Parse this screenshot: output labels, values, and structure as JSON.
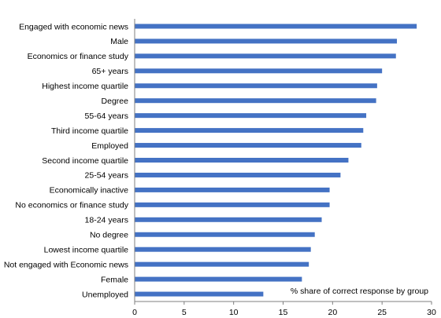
{
  "chart_data": {
    "type": "bar",
    "orientation": "horizontal",
    "categories": [
      "Engaged with economic news",
      "Male",
      "Economics or finance study",
      "65+ years",
      "Highest income quartile",
      "Degree",
      "55-64 years",
      "Third income quartile",
      "Employed",
      "Second income quartile",
      "25-54 years",
      "Economically inactive",
      "No economics or finance study",
      "18-24 years",
      "No degree",
      "Lowest income quartile",
      "Not engaged with Economic news",
      "Female",
      "Unemployed"
    ],
    "values": [
      28.5,
      26.5,
      26.4,
      25.0,
      24.5,
      24.4,
      23.4,
      23.1,
      22.9,
      21.6,
      20.8,
      19.7,
      19.7,
      18.9,
      18.2,
      17.8,
      17.6,
      16.9,
      13.0
    ],
    "xlim": [
      0,
      30
    ],
    "xticks": [
      "0",
      "5",
      "10",
      "15",
      "20",
      "25",
      "30"
    ],
    "annotation": "% share of correct response by group",
    "title": "",
    "xlabel": "",
    "ylabel": "",
    "grid": false,
    "legend": "none",
    "bar_color": "#4472C4"
  }
}
